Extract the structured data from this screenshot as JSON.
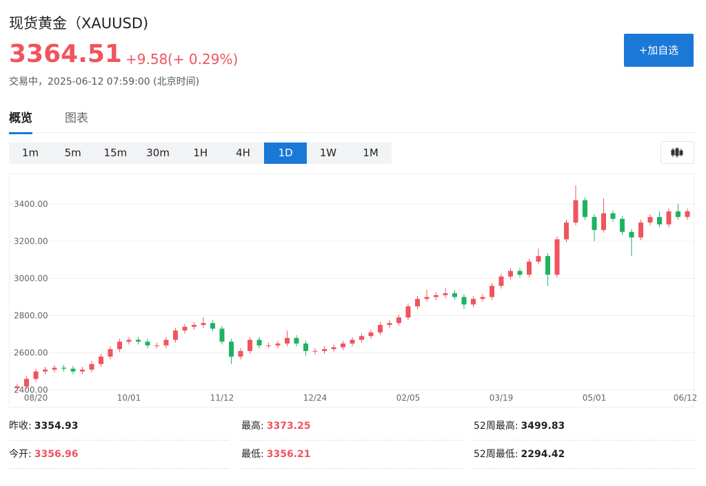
{
  "header": {
    "title": "现货黄金（XAUUSD)",
    "price": 3364.51,
    "change": "+9.58",
    "change_pct": "(+ 0.29%)",
    "status": "交易中，2025-06-12 07:59:00 (北京时间)",
    "button": "+加自选"
  },
  "tabs": {
    "items": [
      "概览",
      "图表"
    ],
    "active": 0
  },
  "timeframes": {
    "items": [
      "1m",
      "5m",
      "15m",
      "30m",
      "1H",
      "4H",
      "1D",
      "1W",
      "1M"
    ],
    "active": 6
  },
  "chart_data": {
    "type": "candlestick",
    "categories": [
      null,
      null,
      "08/20",
      null,
      null,
      null,
      null,
      null,
      null,
      null,
      null,
      null,
      "10/01",
      null,
      null,
      null,
      null,
      null,
      null,
      null,
      null,
      null,
      "11/12",
      null,
      null,
      null,
      null,
      null,
      null,
      null,
      null,
      null,
      "12/24",
      null,
      null,
      null,
      null,
      null,
      null,
      null,
      null,
      null,
      "02/05",
      null,
      null,
      null,
      null,
      null,
      null,
      null,
      null,
      null,
      "03/19",
      null,
      null,
      null,
      null,
      null,
      null,
      null,
      null,
      null,
      "05/01",
      null,
      null,
      null,
      null,
      null,
      null,
      null,
      null,
      null,
      "06/12"
    ],
    "open": [
      2410,
      2420,
      2460,
      2500,
      2510,
      2520,
      2515,
      2500,
      2510,
      2540,
      2580,
      2620,
      2660,
      2670,
      2660,
      2640,
      2640,
      2670,
      2720,
      2740,
      2750,
      2760,
      2730,
      2660,
      2580,
      2610,
      2670,
      2640,
      2640,
      2650,
      2680,
      2650,
      2610,
      2610,
      2620,
      2630,
      2650,
      2670,
      2690,
      2710,
      2750,
      2760,
      2790,
      2850,
      2890,
      2900,
      2910,
      2920,
      2900,
      2860,
      2890,
      2900,
      2960,
      3010,
      3040,
      3020,
      3090,
      3120,
      3020,
      3210,
      3300,
      3420,
      3330,
      3260,
      3350,
      3320,
      3250,
      3220,
      3300,
      3330,
      3290,
      3360,
      3330
    ],
    "high": [
      2435,
      2475,
      2515,
      2525,
      2535,
      2535,
      2530,
      2525,
      2555,
      2595,
      2635,
      2675,
      2685,
      2685,
      2675,
      2655,
      2685,
      2735,
      2755,
      2765,
      2790,
      2775,
      2745,
      2675,
      2625,
      2685,
      2685,
      2655,
      2665,
      2720,
      2695,
      2665,
      2625,
      2635,
      2645,
      2665,
      2685,
      2705,
      2725,
      2765,
      2775,
      2805,
      2865,
      2905,
      2940,
      2925,
      2950,
      2935,
      2915,
      2905,
      2915,
      2975,
      3025,
      3055,
      3055,
      3105,
      3160,
      3135,
      3225,
      3315,
      3500,
      3435,
      3345,
      3430,
      3365,
      3335,
      3265,
      3315,
      3345,
      3360,
      3375,
      3400,
      3375
    ],
    "low": [
      2395,
      2405,
      2445,
      2485,
      2495,
      2500,
      2485,
      2485,
      2495,
      2525,
      2565,
      2605,
      2645,
      2645,
      2625,
      2625,
      2625,
      2655,
      2705,
      2725,
      2735,
      2715,
      2645,
      2540,
      2565,
      2595,
      2625,
      2625,
      2625,
      2635,
      2635,
      2585,
      2590,
      2595,
      2605,
      2615,
      2635,
      2655,
      2675,
      2695,
      2735,
      2745,
      2775,
      2835,
      2875,
      2885,
      2895,
      2885,
      2835,
      2845,
      2875,
      2885,
      2945,
      2995,
      3005,
      3005,
      3075,
      2960,
      3005,
      3195,
      3285,
      3315,
      3200,
      3245,
      3305,
      3235,
      3120,
      3205,
      3285,
      3275,
      3275,
      3315,
      3315
    ],
    "close": [
      2420,
      2460,
      2500,
      2510,
      2520,
      2515,
      2500,
      2510,
      2540,
      2580,
      2620,
      2660,
      2670,
      2660,
      2640,
      2640,
      2670,
      2720,
      2740,
      2750,
      2760,
      2730,
      2660,
      2580,
      2610,
      2670,
      2640,
      2640,
      2650,
      2680,
      2650,
      2610,
      2610,
      2620,
      2630,
      2650,
      2670,
      2690,
      2710,
      2750,
      2760,
      2790,
      2850,
      2890,
      2900,
      2910,
      2920,
      2900,
      2860,
      2890,
      2900,
      2960,
      3010,
      3040,
      3020,
      3090,
      3120,
      3020,
      3210,
      3300,
      3420,
      3330,
      3260,
      3350,
      3320,
      3250,
      3220,
      3300,
      3330,
      3290,
      3360,
      3330,
      3360
    ],
    "up_color": "#f0545c",
    "down_color": "#1fb261",
    "ylim": [
      2310,
      3560
    ],
    "yticks": [
      {
        "value": 2400,
        "label": "2400.00"
      },
      {
        "value": 2600,
        "label": "2600.00"
      },
      {
        "value": 2800,
        "label": "2800.00"
      },
      {
        "value": 3000,
        "label": "3000.00"
      },
      {
        "value": 3200,
        "label": "3200.00"
      },
      {
        "value": 3400,
        "label": "3400.00"
      }
    ],
    "grid": true
  },
  "stats": [
    {
      "label": "昨收:",
      "value": 3354.93,
      "color": "#222222"
    },
    {
      "label": "最高:",
      "value": 3373.25,
      "color": "#f0545c"
    },
    {
      "label": "52周最高:",
      "value": 3499.83,
      "color": "#222222"
    },
    {
      "label": "今开:",
      "value": 3356.96,
      "color": "#f0545c"
    },
    {
      "label": "最低:",
      "value": 3356.21,
      "color": "#f0545c"
    },
    {
      "label": "52周最低:",
      "value": 2294.42,
      "color": "#222222"
    }
  ]
}
